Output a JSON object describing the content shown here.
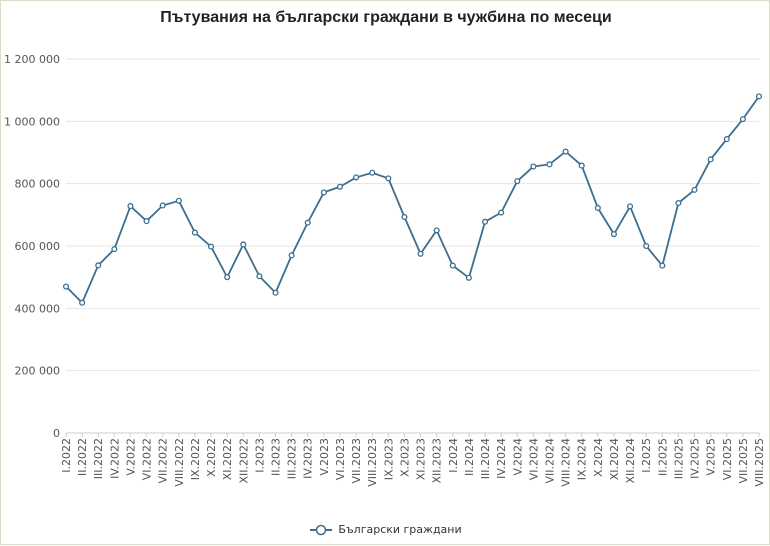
{
  "chart_data": {
    "type": "line",
    "title": "Пътувания на български граждани в чужбина по месеци",
    "xlabel": "",
    "ylabel": "",
    "ylim": [
      0,
      1200000
    ],
    "yticks": [
      0,
      200000,
      400000,
      600000,
      800000,
      1000000,
      1200000
    ],
    "ytick_labels": [
      "0",
      "200 000",
      "400 000",
      "600 000",
      "800 000",
      "1 000 000",
      "1 200 000"
    ],
    "grid": true,
    "legend": "bottom",
    "categories": [
      "I.2022",
      "II.2022",
      "III.2022",
      "IV.2022",
      "V.2022",
      "VI.2022",
      "VII.2022",
      "VIII.2022",
      "IX.2022",
      "X.2022",
      "XI.2022",
      "XII.2022",
      "I.2023",
      "II.2023",
      "III.2023",
      "IV.2023",
      "V.2023",
      "VI.2023",
      "VII.2023",
      "VIII.2023",
      "IX.2023",
      "X.2023",
      "XI.2023",
      "XII.2023",
      "I.2024",
      "II.2024",
      "III.2024",
      "IV.2024",
      "V.2024",
      "VI.2024",
      "VII.2024",
      "VIII.2024",
      "IX.2024",
      "X.2024",
      "XI.2024",
      "XII.2024",
      "I.2025",
      "II.2025",
      "III.2025",
      "IV.2025",
      "V.2025",
      "VI.2025",
      "VII.2025",
      "VIII.2025"
    ],
    "series": [
      {
        "name": "Български граждани",
        "color": "#3c6e8f",
        "values": [
          470000,
          418000,
          538000,
          590000,
          728000,
          680000,
          730000,
          745000,
          643000,
          598000,
          500000,
          605000,
          503000,
          450000,
          570000,
          675000,
          772000,
          790000,
          820000,
          835000,
          817000,
          693000,
          575000,
          650000,
          537000,
          498000,
          678000,
          707000,
          808000,
          855000,
          862000,
          903000,
          858000,
          722000,
          638000,
          727000,
          600000,
          537000,
          738000,
          780000,
          878000,
          943000,
          1007000,
          1080000
        ]
      }
    ]
  }
}
